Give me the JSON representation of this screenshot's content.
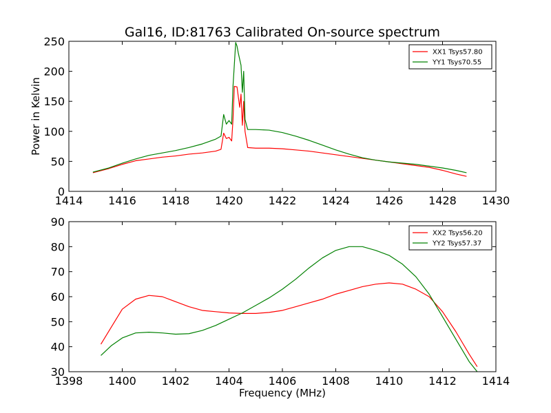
{
  "chart_data": [
    {
      "type": "line",
      "title": "Gal16, ID:81763 Calibrated On-source spectrum",
      "xlabel": "",
      "ylabel": "Power in Kelvin",
      "xlim": [
        1414,
        1430
      ],
      "ylim": [
        0,
        250
      ],
      "xticks": [
        "1414",
        "1416",
        "1418",
        "1420",
        "1422",
        "1424",
        "1426",
        "1428",
        "1430"
      ],
      "yticks": [
        "0",
        "50",
        "100",
        "150",
        "200",
        "250"
      ],
      "grid": false,
      "legend_position": "top-right",
      "series": [
        {
          "name": "XX1 Tsys57.80",
          "color": "#ff0000",
          "x": [
            1414.9,
            1415.5,
            1416.0,
            1416.5,
            1417.0,
            1417.5,
            1418.0,
            1418.5,
            1419.0,
            1419.5,
            1419.7,
            1419.8,
            1419.9,
            1420.0,
            1420.1,
            1420.15,
            1420.2,
            1420.3,
            1420.4,
            1420.45,
            1420.5,
            1420.55,
            1420.6,
            1420.7,
            1421.0,
            1421.5,
            1422.0,
            1422.5,
            1423.0,
            1423.5,
            1424.0,
            1424.5,
            1425.0,
            1425.5,
            1426.0,
            1426.5,
            1427.0,
            1427.5,
            1428.0,
            1428.5,
            1428.9
          ],
          "values": [
            31,
            38,
            45,
            51,
            54,
            57,
            59,
            62,
            64,
            67,
            70,
            97,
            88,
            90,
            84,
            120,
            175,
            174,
            140,
            162,
            110,
            150,
            100,
            73,
            72,
            72,
            71,
            69,
            67,
            64,
            61,
            58,
            55,
            52,
            49,
            46,
            43,
            40,
            35,
            29,
            25
          ]
        },
        {
          "name": "YY1 Tsys70.55",
          "color": "#008000",
          "x": [
            1414.9,
            1415.5,
            1416.0,
            1416.5,
            1417.0,
            1417.5,
            1418.0,
            1418.5,
            1419.0,
            1419.5,
            1419.7,
            1419.8,
            1419.9,
            1420.0,
            1420.1,
            1420.15,
            1420.25,
            1420.3,
            1420.35,
            1420.45,
            1420.5,
            1420.55,
            1420.6,
            1420.7,
            1421.0,
            1421.5,
            1422.0,
            1422.5,
            1423.0,
            1423.5,
            1424.0,
            1424.5,
            1425.0,
            1425.5,
            1426.0,
            1426.5,
            1427.0,
            1427.5,
            1428.0,
            1428.5,
            1428.9
          ],
          "values": [
            32,
            39,
            47,
            54,
            60,
            64,
            68,
            73,
            79,
            87,
            92,
            128,
            112,
            118,
            112,
            175,
            248,
            242,
            230,
            210,
            165,
            200,
            120,
            103,
            103,
            102,
            98,
            92,
            85,
            77,
            69,
            62,
            56,
            52,
            49,
            47,
            45,
            42,
            39,
            35,
            31
          ]
        }
      ]
    },
    {
      "type": "line",
      "title": "",
      "xlabel": "Frequency (MHz)",
      "ylabel": "",
      "xlim": [
        1398,
        1414
      ],
      "ylim": [
        30,
        90
      ],
      "xticks": [
        "1398",
        "1400",
        "1402",
        "1404",
        "1406",
        "1408",
        "1410",
        "1412",
        "1414"
      ],
      "yticks": [
        "30",
        "40",
        "50",
        "60",
        "70",
        "80",
        "90"
      ],
      "grid": false,
      "legend_position": "top-right",
      "series": [
        {
          "name": "XX2 Tsys56.20",
          "color": "#ff0000",
          "x": [
            1399.2,
            1399.6,
            1400.0,
            1400.5,
            1401.0,
            1401.5,
            1402.0,
            1402.5,
            1403.0,
            1403.5,
            1404.0,
            1404.5,
            1405.0,
            1405.5,
            1406.0,
            1406.5,
            1407.0,
            1407.5,
            1408.0,
            1408.5,
            1409.0,
            1409.5,
            1410.0,
            1410.5,
            1411.0,
            1411.5,
            1412.0,
            1412.5,
            1413.0,
            1413.3
          ],
          "values": [
            41,
            48,
            55,
            59,
            60.5,
            60,
            58,
            56,
            54.5,
            54,
            53.5,
            53.3,
            53.3,
            53.7,
            54.5,
            56,
            57.5,
            59,
            61,
            62.5,
            64,
            65,
            65.5,
            65,
            63,
            60,
            54,
            46,
            37,
            32
          ]
        },
        {
          "name": "YY2 Tsys57.37",
          "color": "#008000",
          "x": [
            1399.2,
            1399.6,
            1400.0,
            1400.5,
            1401.0,
            1401.5,
            1402.0,
            1402.5,
            1403.0,
            1403.5,
            1404.0,
            1404.5,
            1405.0,
            1405.5,
            1406.0,
            1406.5,
            1407.0,
            1407.5,
            1408.0,
            1408.5,
            1409.0,
            1409.5,
            1410.0,
            1410.5,
            1411.0,
            1411.5,
            1412.0,
            1412.5,
            1413.0,
            1413.3
          ],
          "values": [
            36.5,
            40.5,
            43.5,
            45.5,
            45.8,
            45.5,
            45,
            45.2,
            46.5,
            48.5,
            51,
            53.5,
            56.5,
            59.5,
            63,
            67,
            71.5,
            75.5,
            78.5,
            80,
            80,
            78.5,
            76.5,
            73,
            68,
            61,
            52,
            43,
            34,
            30
          ]
        }
      ]
    }
  ]
}
